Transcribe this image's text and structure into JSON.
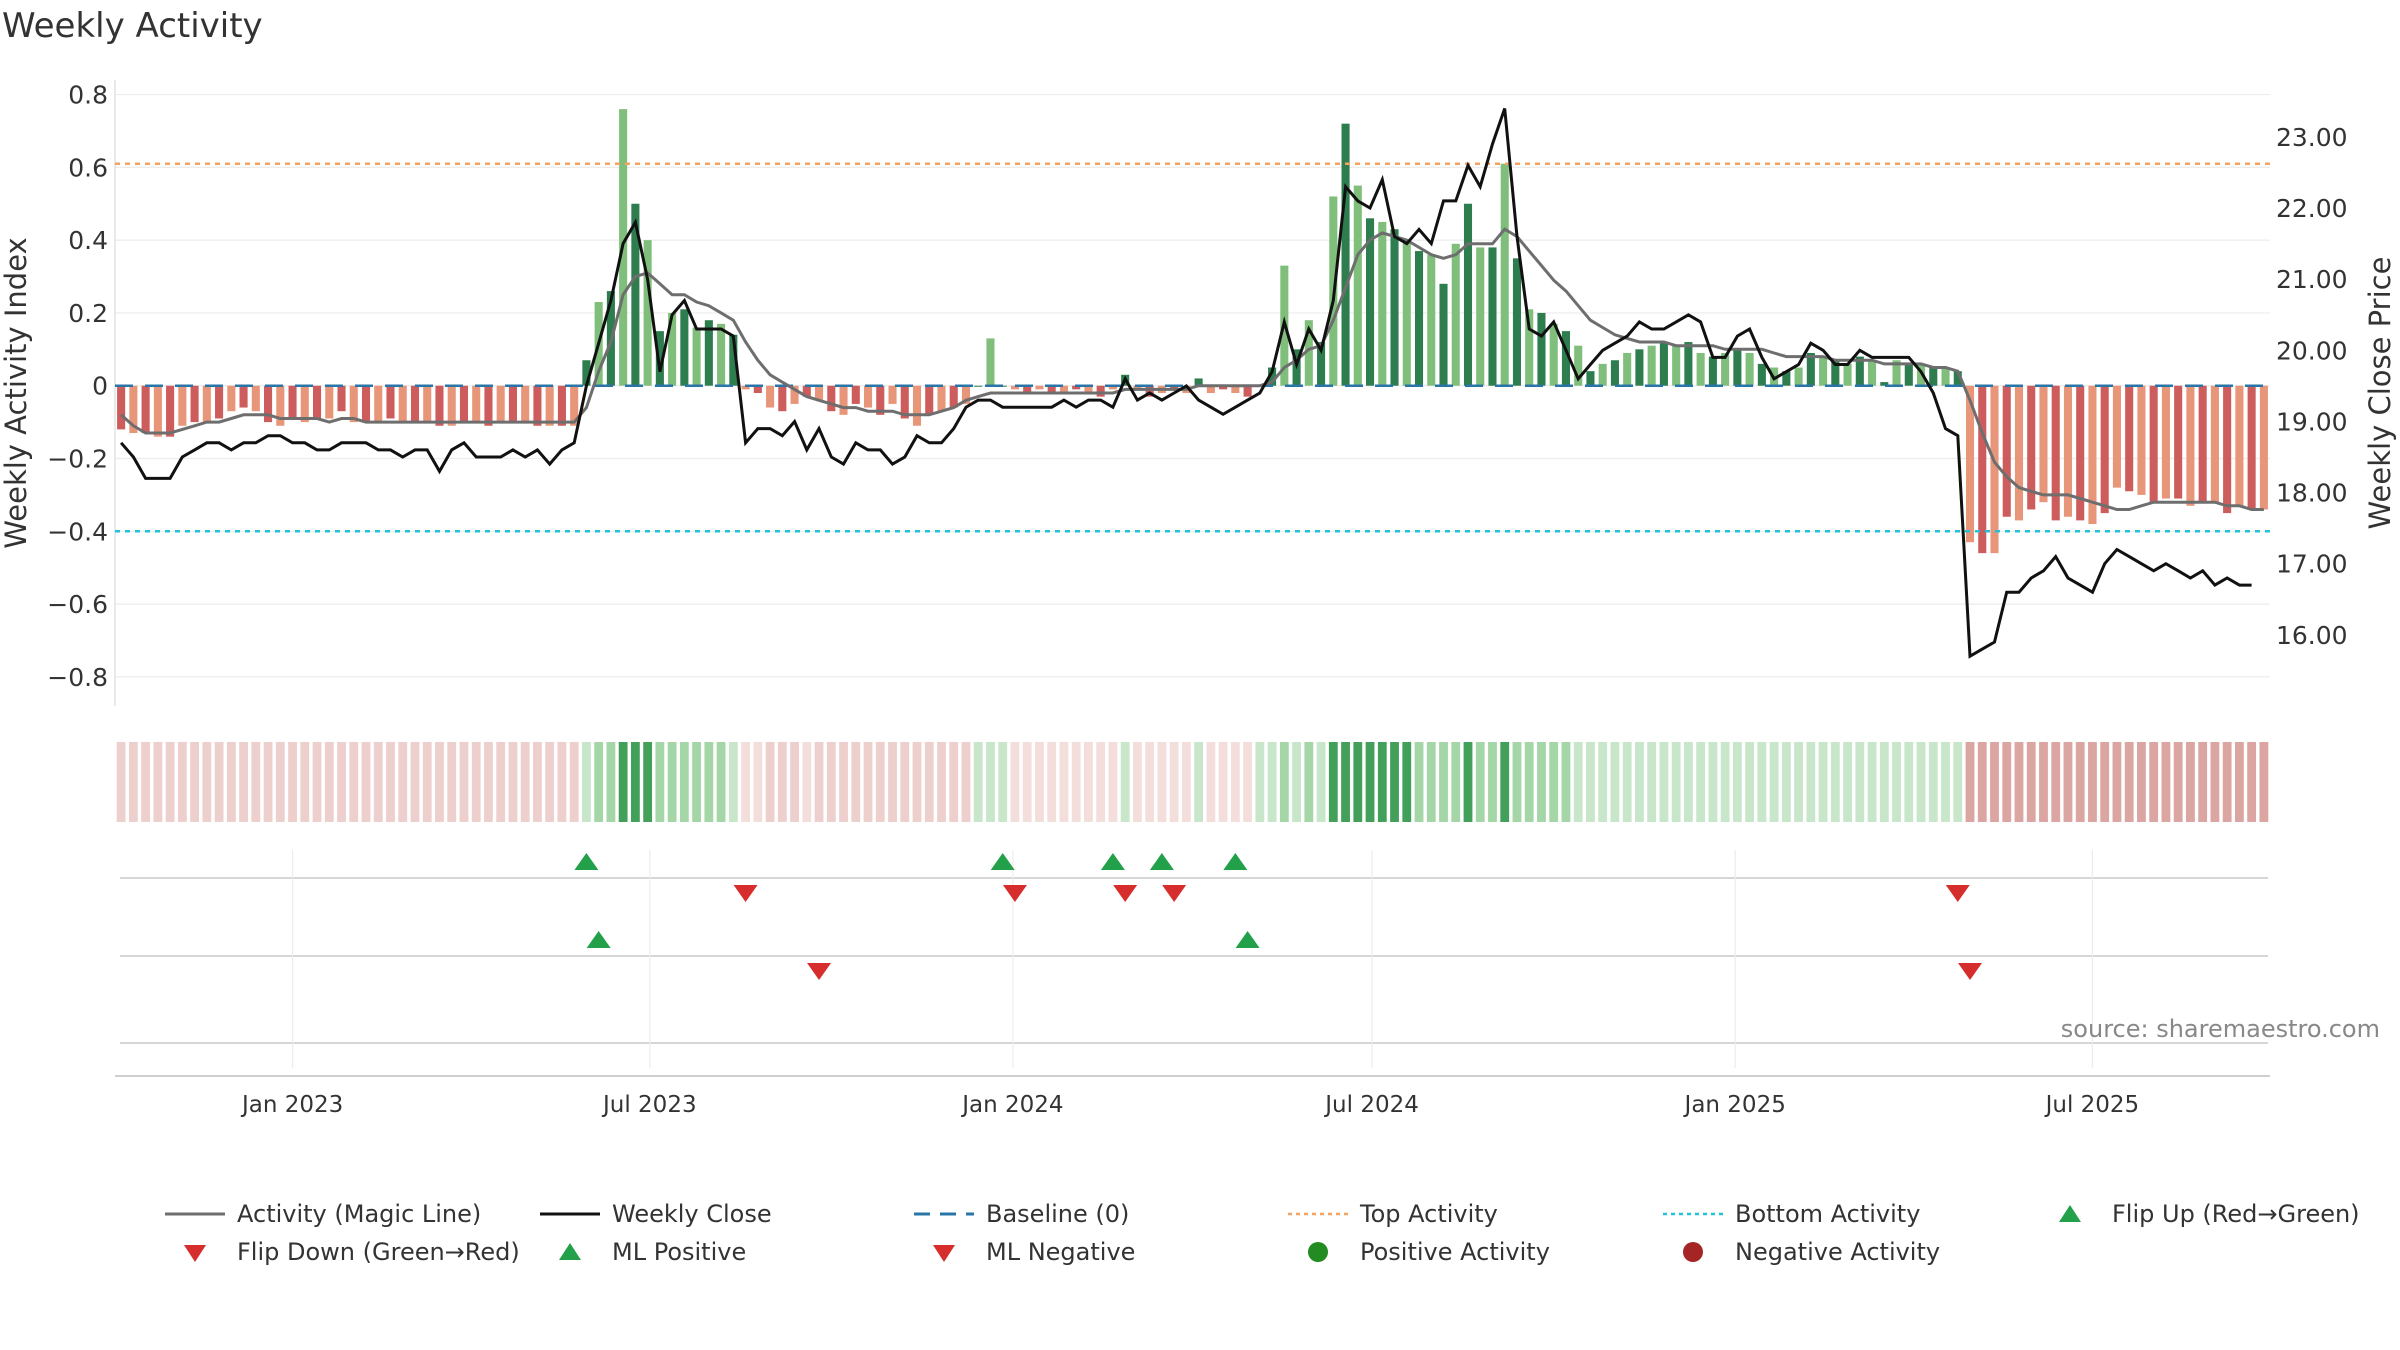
{
  "chart_data": {
    "type": "bar",
    "title": "Weekly Activity",
    "source": "source: sharemaestro.com",
    "ylabel": "Weekly Activity Index",
    "y2label": "Weekly Close Price",
    "ylim": [
      -0.88,
      0.84
    ],
    "y2lim": [
      15.0,
      23.8
    ],
    "yticks": [
      0.8,
      0.6,
      0.4,
      0.2,
      0,
      -0.2,
      -0.4,
      -0.6,
      -0.8
    ],
    "yticklabels": [
      "0.8",
      "0.6",
      "0.4",
      "0.2",
      "0",
      "−0.2",
      "−0.4",
      "−0.6",
      "−0.8"
    ],
    "y2ticks": [
      23,
      22,
      21,
      20,
      19,
      18,
      17,
      16
    ],
    "y2ticklabels": [
      "23.00",
      "22.00",
      "21.00",
      "20.00",
      "19.00",
      "18.00",
      "17.00",
      "16.00"
    ],
    "x_start": "2022-10-03",
    "x_end": "2025-09-29",
    "xticks": [
      {
        "date": "2023-01-01",
        "label": "Jan 2023"
      },
      {
        "date": "2023-07-01",
        "label": "Jul 2023"
      },
      {
        "date": "2024-01-01",
        "label": "Jan 2024"
      },
      {
        "date": "2024-07-01",
        "label": "Jul 2024"
      },
      {
        "date": "2025-01-01",
        "label": "Jan 2025"
      },
      {
        "date": "2025-07-01",
        "label": "Jul 2025"
      }
    ],
    "top_activity": 0.61,
    "bottom_activity": -0.4,
    "baseline": 0,
    "legend": [
      "Activity (Magic Line)",
      "Weekly Close",
      "Baseline (0)",
      "Top Activity",
      "Bottom Activity",
      "Flip Up (Red→Green)",
      "Flip Down (Green→Red)",
      "ML Positive",
      "ML Negative",
      "Positive Activity",
      "Negative Activity"
    ],
    "colors": {
      "pos_strong": "#2e7d4f",
      "pos_light": "#7fbf7b",
      "neg_strong": "#cd5c5c",
      "neg_light": "#e8967a",
      "magic_line": "#6e6e6e",
      "close_line": "#111111",
      "baseline": "#2a75a8",
      "top": "#f4a261",
      "bottom": "#22c3d6",
      "marker_up": "#22a04a",
      "marker_down": "#d62d2d"
    },
    "activity": [
      -0.12,
      -0.13,
      -0.13,
      -0.14,
      -0.14,
      -0.11,
      -0.1,
      -0.1,
      -0.09,
      -0.07,
      -0.06,
      -0.07,
      -0.1,
      -0.11,
      -0.09,
      -0.1,
      -0.09,
      -0.09,
      -0.07,
      -0.1,
      -0.1,
      -0.1,
      -0.09,
      -0.1,
      -0.1,
      -0.1,
      -0.11,
      -0.11,
      -0.1,
      -0.1,
      -0.11,
      -0.1,
      -0.1,
      -0.1,
      -0.11,
      -0.11,
      -0.11,
      -0.11,
      0.07,
      0.23,
      0.26,
      0.76,
      0.5,
      0.4,
      0.15,
      0.2,
      0.21,
      0.16,
      0.18,
      0.17,
      0.14,
      -0.01,
      -0.02,
      -0.06,
      -0.07,
      -0.05,
      -0.03,
      -0.04,
      -0.07,
      -0.08,
      -0.05,
      -0.06,
      -0.08,
      -0.05,
      -0.09,
      -0.11,
      -0.08,
      -0.07,
      -0.06,
      -0.05,
      0.0,
      0.13,
      0.0,
      -0.01,
      -0.02,
      -0.01,
      -0.02,
      -0.02,
      -0.01,
      -0.02,
      -0.03,
      -0.01,
      0.03,
      -0.01,
      -0.03,
      -0.02,
      -0.01,
      -0.02,
      0.02,
      -0.02,
      -0.01,
      -0.02,
      -0.03,
      0.0,
      0.05,
      0.33,
      0.1,
      0.18,
      0.12,
      0.52,
      0.72,
      0.55,
      0.46,
      0.45,
      0.43,
      0.4,
      0.37,
      0.36,
      0.28,
      0.39,
      0.5,
      0.38,
      0.38,
      0.61,
      0.35,
      0.21,
      0.2,
      0.17,
      0.15,
      0.11,
      0.04,
      0.06,
      0.07,
      0.09,
      0.1,
      0.11,
      0.12,
      0.11,
      0.12,
      0.09,
      0.08,
      0.09,
      0.1,
      0.09,
      0.06,
      0.05,
      0.04,
      0.05,
      0.09,
      0.08,
      0.07,
      0.06,
      0.08,
      0.07,
      0.01,
      0.07,
      0.06,
      0.06,
      0.05,
      0.05,
      0.04,
      -0.43,
      -0.46,
      -0.46,
      -0.36,
      -0.37,
      -0.34,
      -0.32,
      -0.37,
      -0.36,
      -0.37,
      -0.38,
      -0.35,
      -0.28,
      -0.29,
      -0.3,
      -0.32,
      -0.31,
      -0.31,
      -0.33,
      -0.32,
      -0.32,
      -0.35,
      -0.33,
      -0.34,
      -0.34
    ],
    "magic_line": [
      -0.08,
      -0.11,
      -0.13,
      -0.13,
      -0.13,
      -0.12,
      -0.11,
      -0.1,
      -0.1,
      -0.09,
      -0.08,
      -0.08,
      -0.08,
      -0.09,
      -0.09,
      -0.09,
      -0.09,
      -0.1,
      -0.09,
      -0.09,
      -0.1,
      -0.1,
      -0.1,
      -0.1,
      -0.1,
      -0.1,
      -0.1,
      -0.1,
      -0.1,
      -0.1,
      -0.1,
      -0.1,
      -0.1,
      -0.1,
      -0.1,
      -0.1,
      -0.1,
      -0.1,
      -0.06,
      0.04,
      0.12,
      0.25,
      0.3,
      0.31,
      0.28,
      0.25,
      0.25,
      0.23,
      0.22,
      0.2,
      0.18,
      0.12,
      0.07,
      0.03,
      0.01,
      -0.01,
      -0.03,
      -0.04,
      -0.05,
      -0.06,
      -0.06,
      -0.07,
      -0.07,
      -0.07,
      -0.08,
      -0.08,
      -0.08,
      -0.07,
      -0.06,
      -0.04,
      -0.03,
      -0.02,
      -0.02,
      -0.02,
      -0.02,
      -0.02,
      -0.02,
      -0.02,
      -0.02,
      -0.02,
      -0.02,
      -0.02,
      -0.01,
      -0.01,
      -0.01,
      -0.01,
      -0.01,
      -0.01,
      0.0,
      0.0,
      0.0,
      0.0,
      0.0,
      0.0,
      0.01,
      0.05,
      0.07,
      0.1,
      0.11,
      0.18,
      0.27,
      0.36,
      0.4,
      0.42,
      0.41,
      0.4,
      0.38,
      0.36,
      0.35,
      0.36,
      0.39,
      0.39,
      0.39,
      0.43,
      0.41,
      0.37,
      0.33,
      0.29,
      0.26,
      0.22,
      0.18,
      0.16,
      0.14,
      0.13,
      0.12,
      0.12,
      0.12,
      0.11,
      0.11,
      0.11,
      0.11,
      0.1,
      0.1,
      0.1,
      0.1,
      0.09,
      0.08,
      0.08,
      0.08,
      0.08,
      0.07,
      0.07,
      0.07,
      0.07,
      0.06,
      0.06,
      0.06,
      0.06,
      0.05,
      0.05,
      0.04,
      -0.04,
      -0.13,
      -0.21,
      -0.25,
      -0.28,
      -0.29,
      -0.3,
      -0.3,
      -0.3,
      -0.31,
      -0.32,
      -0.33,
      -0.34,
      -0.34,
      -0.33,
      -0.32,
      -0.32,
      -0.32,
      -0.32,
      -0.32,
      -0.32,
      -0.33,
      -0.33,
      -0.34,
      -0.34
    ],
    "weekly_close": [
      18.7,
      18.5,
      18.2,
      18.2,
      18.2,
      18.5,
      18.6,
      18.7,
      18.7,
      18.6,
      18.7,
      18.7,
      18.8,
      18.8,
      18.7,
      18.7,
      18.6,
      18.6,
      18.7,
      18.7,
      18.7,
      18.6,
      18.6,
      18.5,
      18.6,
      18.6,
      18.3,
      18.6,
      18.7,
      18.5,
      18.5,
      18.5,
      18.6,
      18.5,
      18.6,
      18.4,
      18.6,
      18.7,
      19.5,
      20.1,
      20.7,
      21.5,
      21.8,
      21.0,
      19.7,
      20.5,
      20.7,
      20.3,
      20.3,
      20.3,
      20.2,
      18.7,
      18.9,
      18.9,
      18.8,
      19.0,
      18.6,
      18.9,
      18.5,
      18.4,
      18.7,
      18.6,
      18.6,
      18.4,
      18.5,
      18.8,
      18.7,
      18.7,
      18.9,
      19.2,
      19.3,
      19.3,
      19.2,
      19.2,
      19.2,
      19.2,
      19.2,
      19.3,
      19.2,
      19.3,
      19.3,
      19.2,
      19.6,
      19.3,
      19.4,
      19.3,
      19.4,
      19.5,
      19.3,
      19.2,
      19.1,
      19.2,
      19.3,
      19.4,
      19.7,
      20.4,
      19.8,
      20.3,
      20.0,
      20.7,
      22.3,
      22.1,
      22.0,
      22.4,
      21.6,
      21.5,
      21.7,
      21.5,
      22.1,
      22.1,
      22.6,
      22.3,
      22.9,
      23.4,
      21.6,
      20.3,
      20.2,
      20.4,
      20.0,
      19.6,
      19.8,
      20.0,
      20.1,
      20.2,
      20.4,
      20.3,
      20.3,
      20.4,
      20.5,
      20.4,
      19.9,
      19.9,
      20.2,
      20.3,
      19.9,
      19.6,
      19.7,
      19.8,
      20.1,
      20.0,
      19.8,
      19.8,
      20.0,
      19.9,
      19.9,
      19.9,
      19.9,
      19.7,
      19.4,
      18.9,
      18.8,
      15.7,
      15.8,
      15.9,
      16.6,
      16.6,
      16.8,
      16.9,
      17.1,
      16.8,
      16.7,
      16.6,
      17.0,
      17.2,
      17.1,
      17.0,
      16.9,
      17.0,
      16.9,
      16.8,
      16.9,
      16.7,
      16.8,
      16.7,
      16.7
    ],
    "strip_colors": {
      "weak_neg": "#edcfcd",
      "pale_neg": "#f3dedc",
      "weak_pos": "#c8e6c9",
      "mid_pos": "#a5d6a7",
      "strong_pos": "#43a05a",
      "strong_neg": "#dba5a2"
    },
    "flip_up_weeks": [
      38,
      72,
      81,
      85,
      91
    ],
    "flip_down_weeks": [
      51,
      73,
      82,
      86,
      150
    ],
    "ml_positive_weeks": [
      39,
      92
    ],
    "ml_negative_weeks": [
      57,
      151
    ]
  }
}
